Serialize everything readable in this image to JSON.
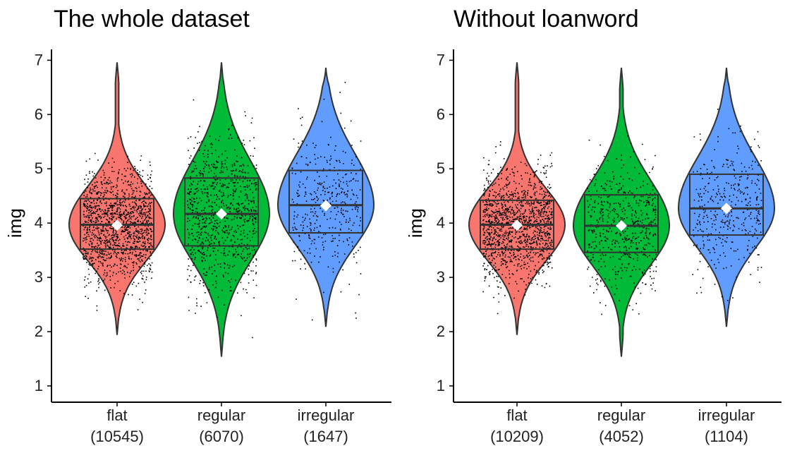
{
  "chart_data": [
    {
      "type": "violin",
      "title": "The whole dataset",
      "ylabel": "img",
      "xlabel": "",
      "ylim": [
        0.7,
        7.2
      ],
      "yticks": [
        1,
        2,
        3,
        4,
        5,
        6,
        7
      ],
      "grid": false,
      "legend": "none",
      "categories": [
        "flat",
        "regular",
        "irregular"
      ],
      "counts": [
        "(10545)",
        "(6070)",
        "(1647)"
      ],
      "groups": [
        {
          "name": "flat",
          "n": 10545,
          "color": "#F8766D",
          "min": 1.95,
          "max": 6.95,
          "q1": 3.52,
          "median": 3.97,
          "q3": 4.45,
          "mean": 3.96
        },
        {
          "name": "regular",
          "n": 6070,
          "color": "#00BA38",
          "min": 1.55,
          "max": 6.95,
          "q1": 3.58,
          "median": 4.17,
          "q3": 4.83,
          "mean": 4.17
        },
        {
          "name": "irregular",
          "n": 1647,
          "color": "#619CFF",
          "min": 2.1,
          "max": 6.85,
          "q1": 3.82,
          "median": 4.33,
          "q3": 4.97,
          "mean": 4.32
        }
      ]
    },
    {
      "type": "violin",
      "title": "Without loanword",
      "ylabel": "img",
      "xlabel": "",
      "ylim": [
        0.7,
        7.2
      ],
      "yticks": [
        1,
        2,
        3,
        4,
        5,
        6,
        7
      ],
      "grid": false,
      "legend": "none",
      "categories": [
        "flat",
        "regular",
        "irregular"
      ],
      "counts": [
        "(10209)",
        "(4052)",
        "(1104)"
      ],
      "groups": [
        {
          "name": "flat",
          "n": 10209,
          "color": "#F8766D",
          "min": 1.95,
          "max": 6.95,
          "q1": 3.52,
          "median": 3.97,
          "q3": 4.42,
          "mean": 3.96
        },
        {
          "name": "regular",
          "n": 4052,
          "color": "#00BA38",
          "min": 1.55,
          "max": 6.85,
          "q1": 3.46,
          "median": 3.95,
          "q3": 4.52,
          "mean": 3.95
        },
        {
          "name": "irregular",
          "n": 1104,
          "color": "#619CFF",
          "min": 2.1,
          "max": 6.85,
          "q1": 3.78,
          "median": 4.27,
          "q3": 4.9,
          "mean": 4.27
        }
      ]
    }
  ]
}
